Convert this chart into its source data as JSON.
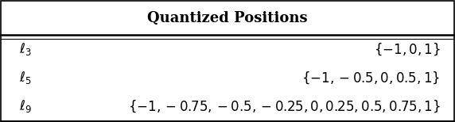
{
  "title": "Quantized Positions",
  "rows": [
    {
      "label": "$\\ell_3$",
      "value": "$\\{-1, 0, 1\\}$"
    },
    {
      "label": "$\\ell_5$",
      "value": "$\\{-1, -0.5, 0, 0.5, 1\\}$"
    },
    {
      "label": "$\\ell_9$",
      "value": "$\\{-1, -0.75, -0.5, -0.25, 0, 0.25, 0.5, 0.75, 1\\}$"
    }
  ],
  "background_color": "#ffffff",
  "title_fontsize": 13,
  "row_fontsize": 12,
  "figsize": [
    5.72,
    1.54
  ],
  "dpi": 100
}
